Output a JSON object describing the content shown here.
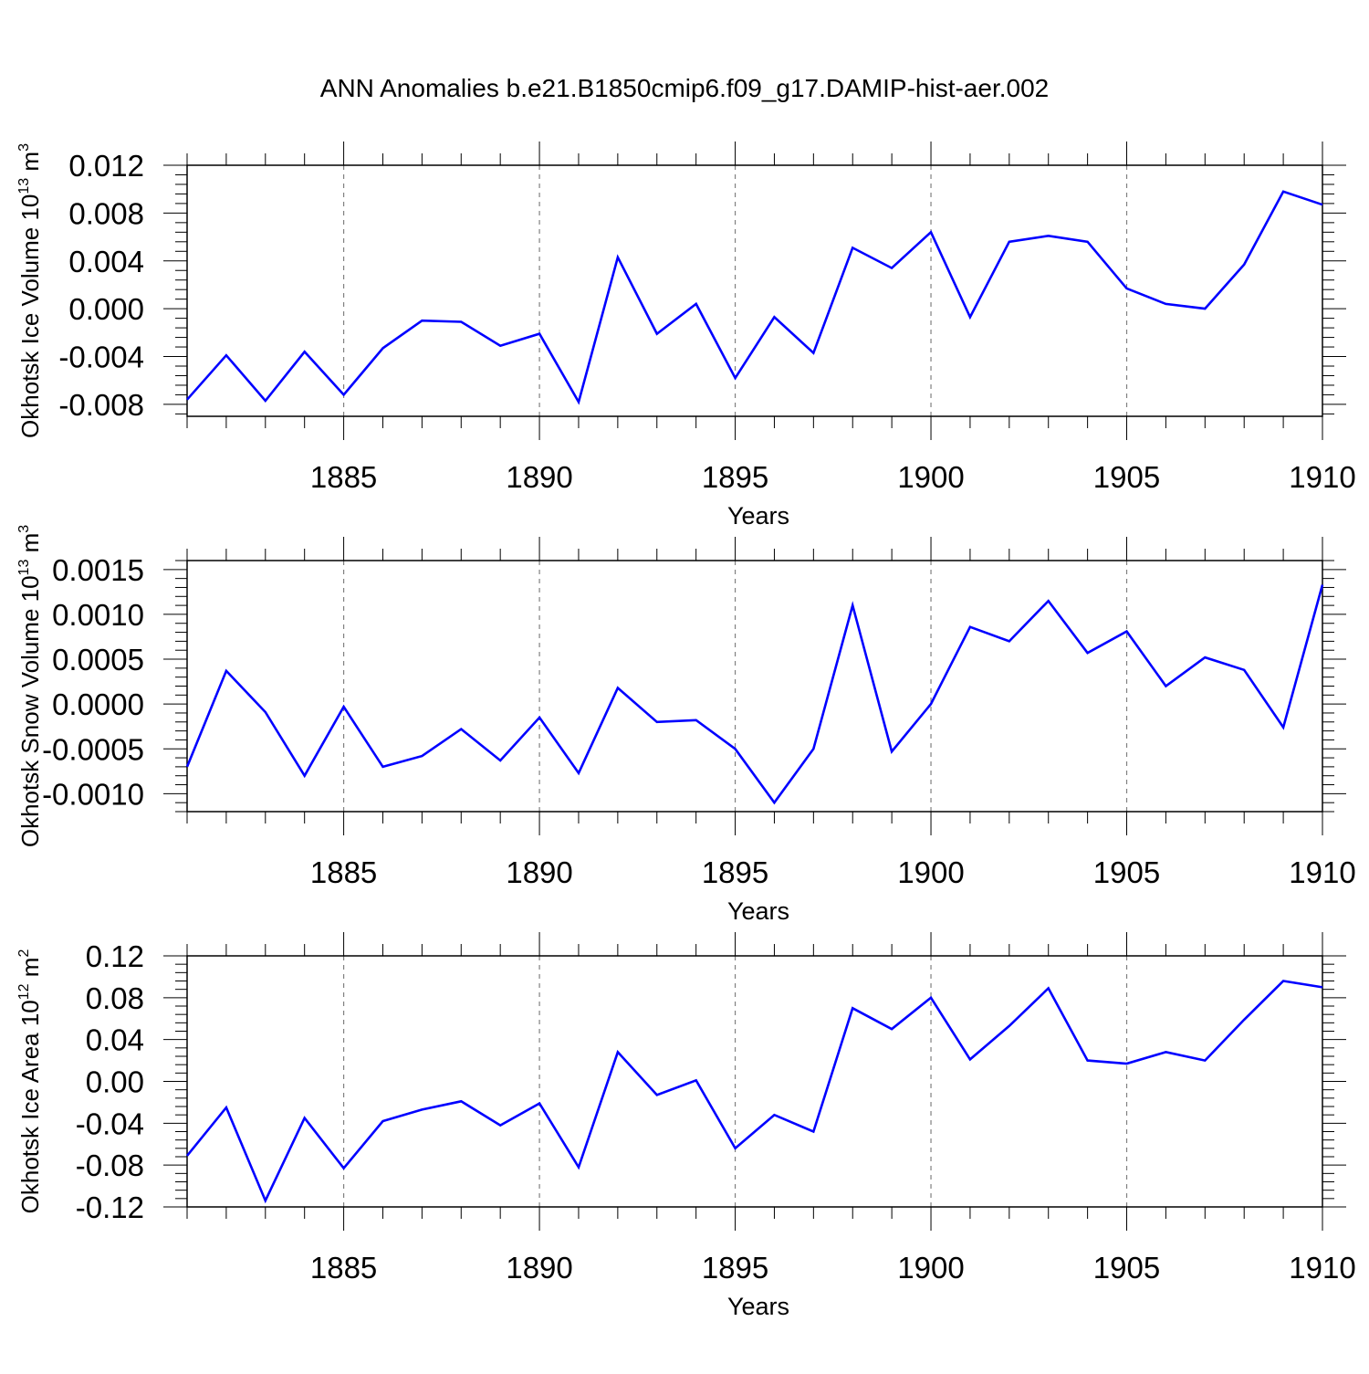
{
  "figure_title": "ANN Anomalies b.e21.B1850cmip6.f09_g17.DAMIP-hist-aer.002",
  "colors": {
    "line": "#0000ff",
    "axis": "#000000",
    "grid": "#808080",
    "background": "#ffffff"
  },
  "chart_data": [
    {
      "type": "line",
      "title": "",
      "xlabel": "Years",
      "ylabel": "Okhotsk Ice Volume 10",
      "ylabel_exp": "13",
      "ylabel_unit": " m",
      "ylabel_unit_exp": "3",
      "xlim": [
        1881,
        1910
      ],
      "ylim": [
        -0.009,
        0.012
      ],
      "x_ticks": [
        1885,
        1890,
        1895,
        1900,
        1905,
        1910
      ],
      "y_ticks": [
        -0.008,
        -0.004,
        0.0,
        0.004,
        0.008,
        0.012
      ],
      "y_tick_labels": [
        "-0.008",
        "-0.004",
        "0.000",
        "0.004",
        "0.008",
        "0.012"
      ],
      "x_grid": "dashed at major x ticks",
      "x": [
        1881,
        1882,
        1883,
        1884,
        1885,
        1886,
        1887,
        1888,
        1889,
        1890,
        1891,
        1892,
        1893,
        1894,
        1895,
        1896,
        1897,
        1898,
        1899,
        1900,
        1901,
        1902,
        1903,
        1904,
        1905,
        1906,
        1907,
        1908,
        1909,
        1910
      ],
      "series": [
        {
          "values": [
            -0.0076,
            -0.0039,
            -0.0077,
            -0.0036,
            -0.0072,
            -0.0033,
            -0.001,
            -0.0011,
            -0.0031,
            -0.0021,
            -0.0078,
            0.0043,
            -0.0021,
            0.0004,
            -0.0058,
            -0.0007,
            -0.0037,
            0.0051,
            0.0034,
            0.0064,
            -0.0007,
            0.0056,
            0.0061,
            0.0056,
            0.0017,
            0.0004,
            0.0,
            0.0037,
            0.0098,
            0.0087
          ]
        }
      ]
    },
    {
      "type": "line",
      "title": "",
      "xlabel": "Years",
      "ylabel": "Okhotsk Snow Volume 10",
      "ylabel_exp": "13",
      "ylabel_unit": " m",
      "ylabel_unit_exp": "3",
      "xlim": [
        1881,
        1910
      ],
      "ylim": [
        -0.0012,
        0.0016
      ],
      "x_ticks": [
        1885,
        1890,
        1895,
        1900,
        1905,
        1910
      ],
      "y_ticks": [
        -0.001,
        -0.0005,
        0.0,
        0.0005,
        0.001,
        0.0015
      ],
      "y_tick_labels": [
        "-0.0010",
        "-0.0005",
        "0.0000",
        "0.0005",
        "0.0010",
        "0.0015"
      ],
      "x_grid": "dashed at major x ticks",
      "x": [
        1881,
        1882,
        1883,
        1884,
        1885,
        1886,
        1887,
        1888,
        1889,
        1890,
        1891,
        1892,
        1893,
        1894,
        1895,
        1896,
        1897,
        1898,
        1899,
        1900,
        1901,
        1902,
        1903,
        1904,
        1905,
        1906,
        1907,
        1908,
        1909,
        1910
      ],
      "series": [
        {
          "values": [
            -0.0007,
            0.00037,
            -9e-05,
            -0.0008,
            -3e-05,
            -0.0007,
            -0.00058,
            -0.00028,
            -0.00063,
            -0.00015,
            -0.00077,
            0.00018,
            -0.0002,
            -0.00018,
            -0.0005,
            -0.0011,
            -0.0005,
            0.0011,
            -0.00053,
            0.0,
            0.00086,
            0.0007,
            0.00115,
            0.00057,
            0.00081,
            0.0002,
            0.00052,
            0.00038,
            -0.00026,
            0.00133
          ]
        }
      ]
    },
    {
      "type": "line",
      "title": "",
      "xlabel": "Years",
      "ylabel": "Okhotsk Ice Area 10",
      "ylabel_exp": "12",
      "ylabel_unit": " m",
      "ylabel_unit_exp": "2",
      "xlim": [
        1881,
        1910
      ],
      "ylim": [
        -0.12,
        0.12
      ],
      "x_ticks": [
        1885,
        1890,
        1895,
        1900,
        1905,
        1910
      ],
      "y_ticks": [
        -0.12,
        -0.08,
        -0.04,
        0.0,
        0.04,
        0.08,
        0.12
      ],
      "y_tick_labels": [
        "-0.12",
        "-0.08",
        "-0.04",
        "0.00",
        "0.04",
        "0.08",
        "0.12"
      ],
      "x_grid": "dashed at major x ticks",
      "x": [
        1881,
        1882,
        1883,
        1884,
        1885,
        1886,
        1887,
        1888,
        1889,
        1890,
        1891,
        1892,
        1893,
        1894,
        1895,
        1896,
        1897,
        1898,
        1899,
        1900,
        1901,
        1902,
        1903,
        1904,
        1905,
        1906,
        1907,
        1908,
        1909,
        1910
      ],
      "series": [
        {
          "values": [
            -0.071,
            -0.025,
            -0.114,
            -0.035,
            -0.083,
            -0.038,
            -0.027,
            -0.019,
            -0.042,
            -0.021,
            -0.082,
            0.028,
            -0.013,
            0.001,
            -0.064,
            -0.032,
            -0.048,
            0.07,
            0.05,
            0.08,
            0.021,
            0.053,
            0.089,
            0.02,
            0.017,
            0.028,
            0.02,
            0.059,
            0.096,
            0.09
          ]
        }
      ]
    }
  ]
}
